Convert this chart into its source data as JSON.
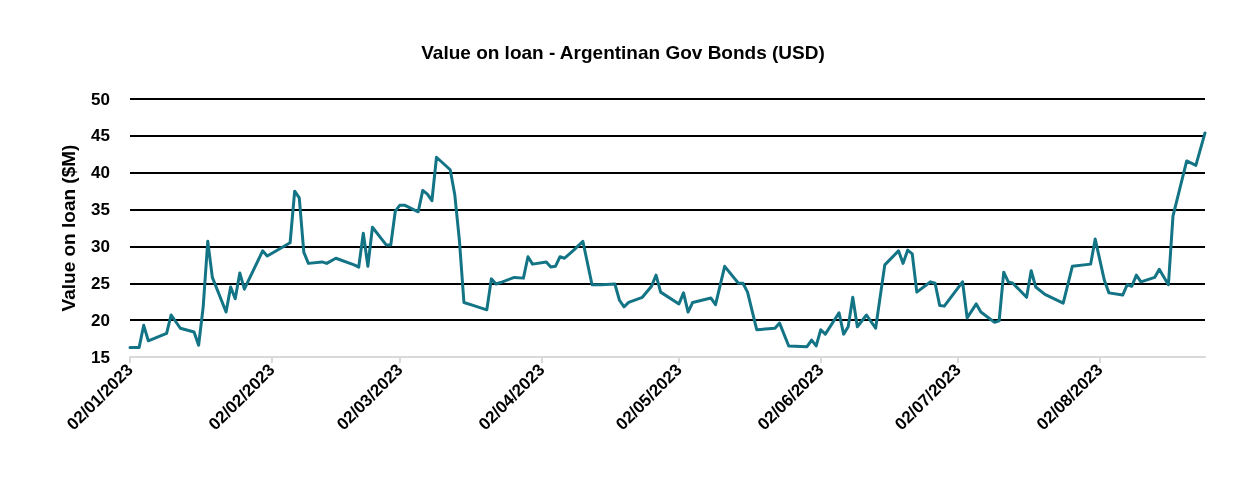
{
  "chart_data": {
    "type": "line",
    "title": "Value on loan - Argentinan Gov Bonds (USD)",
    "ylabel": "Value on loan ($M)",
    "x": [
      "2023-01-02",
      "2023-01-04",
      "2023-01-05",
      "2023-01-06",
      "2023-01-10",
      "2023-01-11",
      "2023-01-13",
      "2023-01-16",
      "2023-01-17",
      "2023-01-18",
      "2023-01-19",
      "2023-01-20",
      "2023-01-23",
      "2023-01-24",
      "2023-01-25",
      "2023-01-26",
      "2023-01-27",
      "2023-01-31",
      "2023-02-01",
      "2023-02-06",
      "2023-02-07",
      "2023-02-08",
      "2023-02-09",
      "2023-02-10",
      "2023-02-13",
      "2023-02-14",
      "2023-02-16",
      "2023-02-20",
      "2023-02-21",
      "2023-02-22",
      "2023-02-23",
      "2023-02-24",
      "2023-02-27",
      "2023-02-28",
      "2023-03-01",
      "2023-03-02",
      "2023-03-03",
      "2023-03-06",
      "2023-03-07",
      "2023-03-08",
      "2023-03-09",
      "2023-03-10",
      "2023-03-13",
      "2023-03-14",
      "2023-03-15",
      "2023-03-16",
      "2023-03-18",
      "2023-03-21",
      "2023-03-22",
      "2023-03-23",
      "2023-03-24",
      "2023-03-27",
      "2023-03-29",
      "2023-03-30",
      "2023-03-31",
      "2023-04-03",
      "2023-04-04",
      "2023-04-05",
      "2023-04-06",
      "2023-04-07",
      "2023-04-09",
      "2023-04-11",
      "2023-04-13",
      "2023-04-15",
      "2023-04-18",
      "2023-04-19",
      "2023-04-20",
      "2023-04-21",
      "2023-04-24",
      "2023-04-26",
      "2023-04-27",
      "2023-04-28",
      "2023-05-02",
      "2023-05-03",
      "2023-05-04",
      "2023-05-05",
      "2023-05-09",
      "2023-05-10",
      "2023-05-12",
      "2023-05-15",
      "2023-05-16",
      "2023-05-17",
      "2023-05-19",
      "2023-05-23",
      "2023-05-24",
      "2023-05-26",
      "2023-05-30",
      "2023-05-31",
      "2023-06-01",
      "2023-06-02",
      "2023-06-03",
      "2023-06-06",
      "2023-06-07",
      "2023-06-08",
      "2023-06-09",
      "2023-06-10",
      "2023-06-12",
      "2023-06-14",
      "2023-06-16",
      "2023-06-19",
      "2023-06-20",
      "2023-06-21",
      "2023-06-22",
      "2023-06-23",
      "2023-06-26",
      "2023-06-27",
      "2023-06-28",
      "2023-06-29",
      "2023-07-03",
      "2023-07-04",
      "2023-07-06",
      "2023-07-07",
      "2023-07-10",
      "2023-07-11",
      "2023-07-12",
      "2023-07-13",
      "2023-07-14",
      "2023-07-17",
      "2023-07-18",
      "2023-07-19",
      "2023-07-21",
      "2023-07-25",
      "2023-07-27",
      "2023-07-31",
      "2023-08-01",
      "2023-08-03",
      "2023-08-04",
      "2023-08-07",
      "2023-08-08",
      "2023-08-09",
      "2023-08-10",
      "2023-08-11",
      "2023-08-14",
      "2023-08-15",
      "2023-08-17",
      "2023-08-18",
      "2023-08-21",
      "2023-08-23",
      "2023-08-25"
    ],
    "series": [
      {
        "color": "#137486",
        "values": [
          16.3,
          16.3,
          19.3,
          17.2,
          18.2,
          20.7,
          18.9,
          18.4,
          16.6,
          21.8,
          30.7,
          25.8,
          21.1,
          24.5,
          22.9,
          26.4,
          24.2,
          29.4,
          28.7,
          30.5,
          37.5,
          36.6,
          29.2,
          27.7,
          27.9,
          27.7,
          28.4,
          27.5,
          27.2,
          31.8,
          27.3,
          32.6,
          30.2,
          30.2,
          34.8,
          35.6,
          35.6,
          34.7,
          37.6,
          37.1,
          36.2,
          42.1,
          40.4,
          37.0,
          30.9,
          22.4,
          22.0,
          21.4,
          25.6,
          24.9,
          25.1,
          25.8,
          25.7,
          28.6,
          27.6,
          27.9,
          27.2,
          27.3,
          28.6,
          28.4,
          29.5,
          30.7,
          24.8,
          24.8,
          24.9,
          22.7,
          21.8,
          22.4,
          23.1,
          24.6,
          26.1,
          23.8,
          22.2,
          23.7,
          21.1,
          22.4,
          23.0,
          22.1,
          27.3,
          25.0,
          25.0,
          23.8,
          18.7,
          18.9,
          19.6,
          16.5,
          16.4,
          17.3,
          16.5,
          18.7,
          18.1,
          21.0,
          18.1,
          19.1,
          23.1,
          19.1,
          20.7,
          18.9,
          27.5,
          29.4,
          27.7,
          29.5,
          29.0,
          23.8,
          25.2,
          25.0,
          22.0,
          21.9,
          25.2,
          20.3,
          22.2,
          21.1,
          19.7,
          19.9,
          26.5,
          25.2,
          25.0,
          23.1,
          26.7,
          24.5,
          23.5,
          22.3,
          27.3,
          27.6,
          31.0,
          25.4,
          23.7,
          23.4,
          24.8,
          24.6,
          26.1,
          25.2,
          25.8,
          26.9,
          24.8,
          34.1,
          41.6,
          41.0,
          45.4
        ]
      }
    ],
    "xlim": [
      "2023-01-02",
      "2023-08-25"
    ],
    "xticks": [
      {
        "value": "2023-01-02",
        "label": "02/01/2023"
      },
      {
        "value": "2023-02-02",
        "label": "02/02/2023"
      },
      {
        "value": "2023-03-02",
        "label": "02/03/2023"
      },
      {
        "value": "2023-04-02",
        "label": "02/04/2023"
      },
      {
        "value": "2023-05-02",
        "label": "02/05/2023"
      },
      {
        "value": "2023-06-02",
        "label": "02/06/2023"
      },
      {
        "value": "2023-07-02",
        "label": "02/07/2023"
      },
      {
        "value": "2023-08-02",
        "label": "02/08/2023"
      }
    ],
    "ylim": [
      15,
      50
    ],
    "yticks": [
      15,
      20,
      25,
      30,
      35,
      40,
      45,
      50
    ],
    "grid": "y",
    "line_style": "solid",
    "marker": "none"
  }
}
